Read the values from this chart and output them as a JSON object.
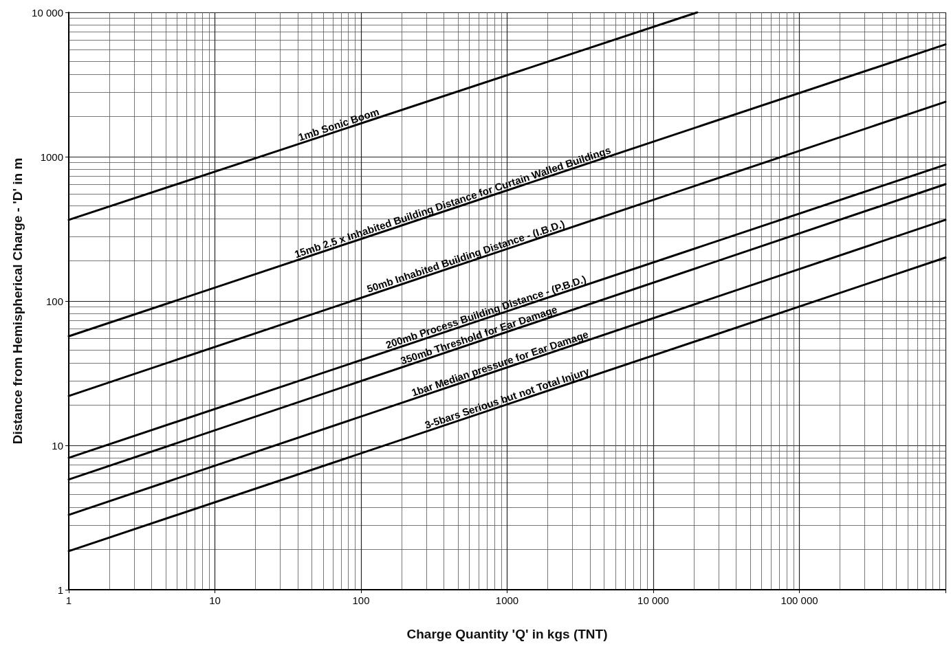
{
  "chart_data": {
    "type": "line",
    "xlabel": "Charge Quantity 'Q' in kgs (TNT)",
    "ylabel": "Distance from Hemispherical Charge - 'D' in m",
    "x": [
      1,
      1000000
    ],
    "log": "xy",
    "grid": true,
    "marker": "none",
    "line_style": "solid",
    "xlim": [
      1,
      1000000
    ],
    "xticks": [
      1,
      10,
      100,
      1000,
      {
        "value": 10000,
        "label": "10 000"
      },
      {
        "value": 100000,
        "label": "100 000"
      },
      {
        "value": 1000000,
        "label": null
      }
    ],
    "ylim": [
      1,
      10000
    ],
    "yticks": [
      1,
      10,
      100,
      1000,
      {
        "value": 10000,
        "label": "10 000"
      }
    ],
    "series": [
      {
        "name": "1mb Sonic Boom",
        "color": "#000000",
        "x": [
          1,
          20000
        ],
        "values": [
          365,
          10000
        ]
      },
      {
        "name": "15mb 2.5 x Inhabited Building Distance for Curtain Walled Buildings",
        "color": "#000000",
        "values": [
          57,
          6000
        ]
      },
      {
        "name": "50mb Inhabited Building Distance - (I.B.D.)",
        "color": "#000000",
        "values": [
          22,
          2400
        ]
      },
      {
        "name": "200mb Process Building Distance - (P.B.D.)",
        "color": "#000000",
        "values": [
          8.2,
          880
        ]
      },
      {
        "name": "350mb Threshold for Ear Damage",
        "color": "#000000",
        "values": [
          5.8,
          645
        ]
      },
      {
        "name": "1bar Median pressure for Ear Damage",
        "color": "#000000",
        "values": [
          3.3,
          365
        ]
      },
      {
        "name": "3-5bars Serious but not Total Injury",
        "color": "#000000",
        "values": [
          1.85,
          200
        ]
      }
    ]
  }
}
